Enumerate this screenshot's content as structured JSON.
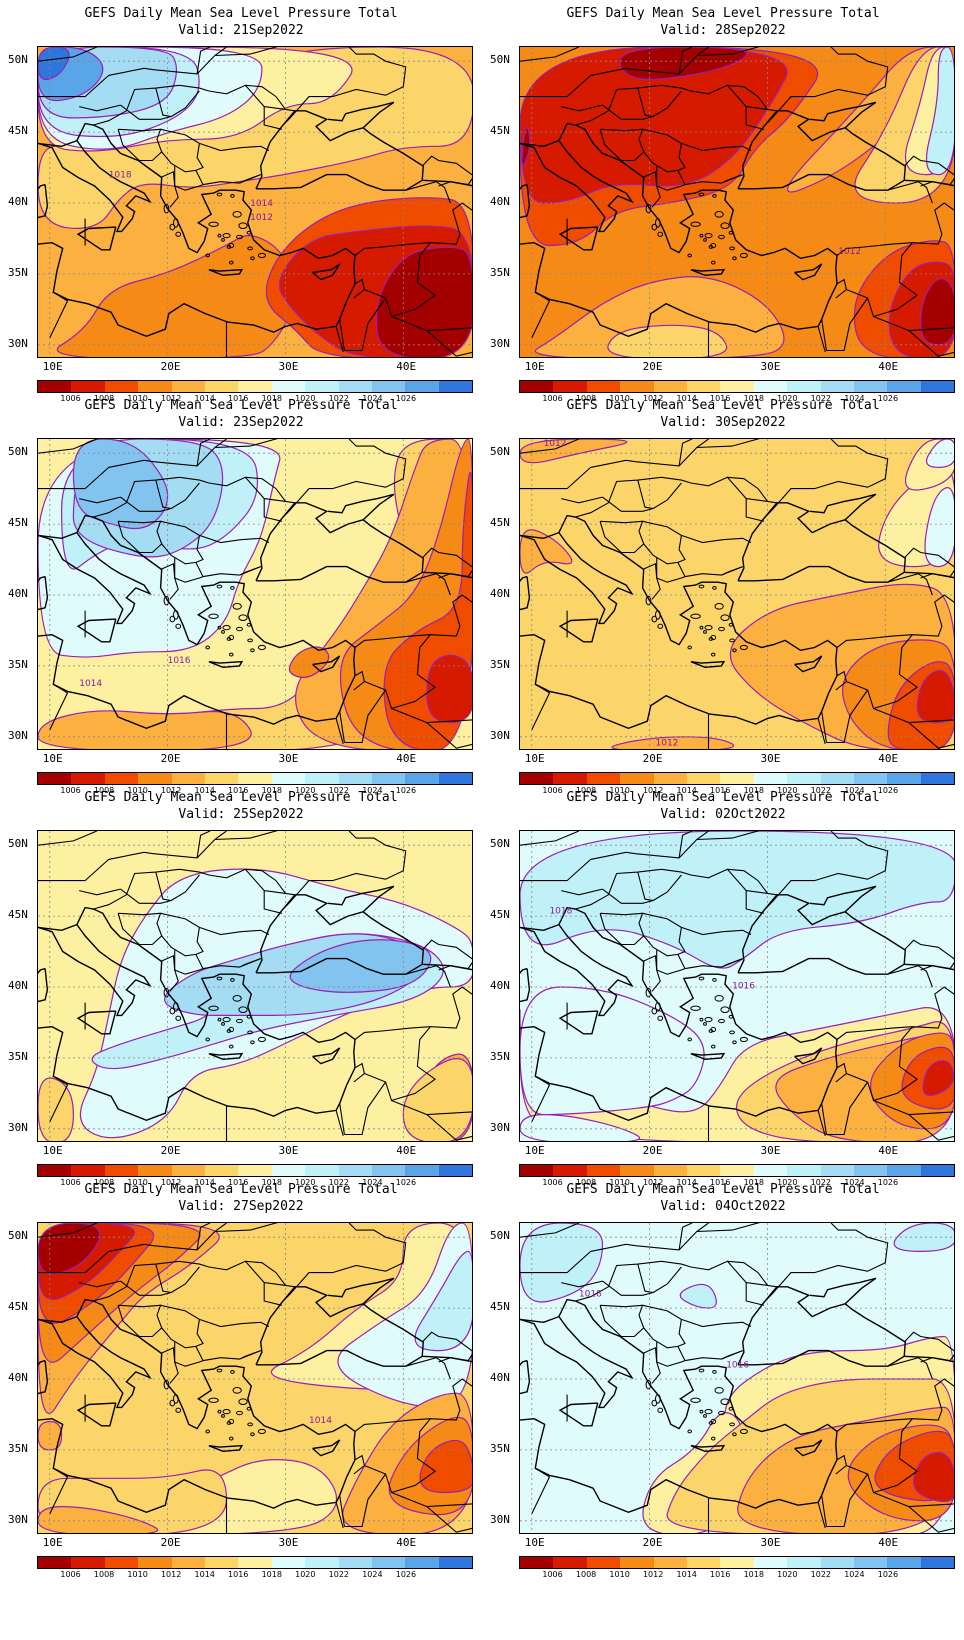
{
  "panels": [
    {
      "title": "GEFS Daily Mean Sea Level Pressure Total",
      "valid": "Valid: 21Sep2022",
      "contour_labels": [
        "1018",
        "1014",
        "1012"
      ],
      "scheme": "s21"
    },
    {
      "title": "GEFS Daily Mean Sea Level Pressure Total",
      "valid": "Valid: 28Sep2022",
      "contour_labels": [
        "1012"
      ],
      "scheme": "s28"
    },
    {
      "title": "GEFS Daily Mean Sea Level Pressure Total",
      "valid": "Valid: 23Sep2022",
      "contour_labels": [
        "1016",
        "1014"
      ],
      "scheme": "s23"
    },
    {
      "title": "GEFS Daily Mean Sea Level Pressure Total",
      "valid": "Valid: 30Sep2022",
      "contour_labels": [
        "1012",
        "1012"
      ],
      "scheme": "s30"
    },
    {
      "title": "GEFS Daily Mean Sea Level Pressure Total",
      "valid": "Valid: 25Sep2022",
      "contour_labels": [],
      "scheme": "s25"
    },
    {
      "title": "GEFS Daily Mean Sea Level Pressure Total",
      "valid": "Valid: 02Oct2022",
      "contour_labels": [
        "1018",
        "1016"
      ],
      "scheme": "s02"
    },
    {
      "title": "GEFS Daily Mean Sea Level Pressure Total",
      "valid": "Valid: 27Sep2022",
      "contour_labels": [
        "1014"
      ],
      "scheme": "s27"
    },
    {
      "title": "GEFS Daily Mean Sea Level Pressure Total",
      "valid": "Valid: 04Oct2022",
      "contour_labels": [
        "1018",
        "1016"
      ],
      "scheme": "s04"
    }
  ],
  "axes": {
    "y_ticks": [
      "50N",
      "45N",
      "40N",
      "35N",
      "30N"
    ],
    "x_ticks": [
      "10E",
      "20E",
      "30E",
      "40E"
    ]
  },
  "colorbar": {
    "colors": [
      "#a50000",
      "#d61a00",
      "#ef4c00",
      "#f58a16",
      "#fbb040",
      "#fcd56a",
      "#fdf0a0",
      "#e0fbfc",
      "#c0f0f8",
      "#a4dcf4",
      "#82c4ef",
      "#5aa4e8",
      "#2f76dc"
    ],
    "labels": [
      "1006",
      "1008",
      "1010",
      "1012",
      "1014",
      "1016",
      "1018",
      "1020",
      "1022",
      "1024",
      "1026"
    ]
  }
}
